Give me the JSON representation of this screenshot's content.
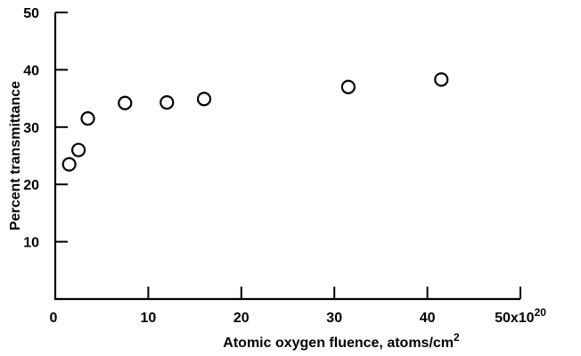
{
  "chart_data": {
    "type": "scatter",
    "xlabel": "Atomic oxygen fluence, atoms/cm",
    "xlabel_superscript": "2",
    "ylabel": "Percent transmittance",
    "xlim": [
      0,
      50
    ],
    "ylim": [
      0,
      50
    ],
    "x_ticks": [
      {
        "value": 0,
        "label": "0"
      },
      {
        "value": 10,
        "label": "10"
      },
      {
        "value": 20,
        "label": "20"
      },
      {
        "value": 30,
        "label": "30"
      },
      {
        "value": 40,
        "label": "40"
      },
      {
        "value": 50,
        "label": "50x10",
        "superscript": "20"
      }
    ],
    "y_ticks": [
      {
        "value": 10,
        "label": "10"
      },
      {
        "value": 20,
        "label": "20"
      },
      {
        "value": 30,
        "label": "30"
      },
      {
        "value": 40,
        "label": "40"
      },
      {
        "value": 50,
        "label": "50"
      }
    ],
    "grid": false,
    "marker": "open-circle",
    "points": [
      {
        "x": 1.5,
        "y": 23.5
      },
      {
        "x": 2.5,
        "y": 26
      },
      {
        "x": 3.5,
        "y": 31.5
      },
      {
        "x": 7.5,
        "y": 34.2
      },
      {
        "x": 12,
        "y": 34.3
      },
      {
        "x": 16,
        "y": 34.9
      },
      {
        "x": 31.5,
        "y": 37
      },
      {
        "x": 41.5,
        "y": 38.3
      }
    ]
  }
}
